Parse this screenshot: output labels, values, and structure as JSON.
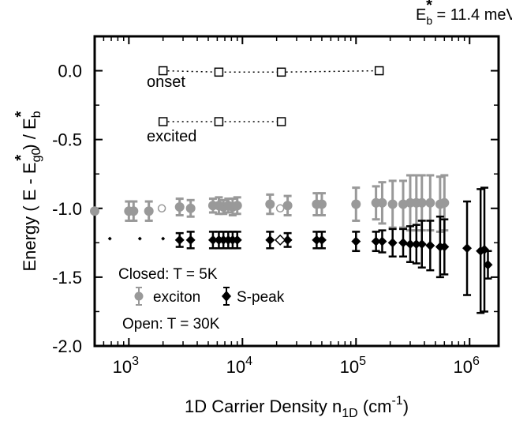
{
  "chart_data": {
    "type": "scatter",
    "header_note": {
      "main": "E",
      "sub": "b",
      "sup": "*",
      "rest": " = 11.4 meV"
    },
    "xlabel": {
      "pre": "1D Carrier Density n",
      "sub": "1D",
      "mid": " (cm",
      "sup": "-1",
      "post": ")"
    },
    "ylabel": "Energy  ( E - E*g0 ) / E*b",
    "x_scale": "log",
    "xlim": [
      500,
      1800000
    ],
    "ylim": [
      -2.0,
      0.25
    ],
    "y_ticks": [
      "0.0",
      "-0.5",
      "-1.0",
      "-1.5",
      "-2.0"
    ],
    "y_tick_values": [
      0.0,
      -0.5,
      -1.0,
      -1.5,
      -2.0
    ],
    "x_ticks": [
      {
        "value": 1000,
        "base": "10",
        "exp": "3"
      },
      {
        "value": 10000,
        "base": "10",
        "exp": "4"
      },
      {
        "value": 100000,
        "base": "10",
        "exp": "5"
      },
      {
        "value": 1000000,
        "base": "10",
        "exp": "6"
      }
    ],
    "grid": false,
    "series": [
      {
        "name": "onset",
        "style": "open-square-dotted",
        "color": "#000000",
        "points": [
          {
            "x": 2000,
            "y": 0.0
          },
          {
            "x": 6200,
            "y": -0.01
          },
          {
            "x": 22000,
            "y": -0.01
          },
          {
            "x": 160000,
            "y": 0.0
          }
        ]
      },
      {
        "name": "excited",
        "style": "open-square-dotted",
        "color": "#000000",
        "points": [
          {
            "x": 2000,
            "y": -0.37
          },
          {
            "x": 6200,
            "y": -0.37
          },
          {
            "x": 22000,
            "y": -0.37
          }
        ]
      },
      {
        "name": "exciton",
        "style": "filled-circle",
        "color": "#999999",
        "points": [
          {
            "x": 500,
            "y": -1.02,
            "err": 0.0
          },
          {
            "x": 1000,
            "y": -1.02,
            "err": 0.07
          },
          {
            "x": 1100,
            "y": -1.02,
            "err": 0.07
          },
          {
            "x": 1500,
            "y": -1.02,
            "err": 0.07
          },
          {
            "x": 2800,
            "y": -0.99,
            "err": 0.06
          },
          {
            "x": 3500,
            "y": -1.0,
            "err": 0.06
          },
          {
            "x": 5500,
            "y": -0.98,
            "err": 0.05
          },
          {
            "x": 6200,
            "y": -0.98,
            "err": 0.06
          },
          {
            "x": 6800,
            "y": -0.99,
            "err": 0.05
          },
          {
            "x": 7500,
            "y": -0.98,
            "err": 0.05
          },
          {
            "x": 8200,
            "y": -0.99,
            "err": 0.06
          },
          {
            "x": 9000,
            "y": -0.98,
            "err": 0.06
          },
          {
            "x": 17500,
            "y": -0.97,
            "err": 0.07
          },
          {
            "x": 25000,
            "y": -0.98,
            "err": 0.07
          },
          {
            "x": 45000,
            "y": -0.97,
            "err": 0.08
          },
          {
            "x": 50000,
            "y": -0.97,
            "err": 0.08
          },
          {
            "x": 100000,
            "y": -0.97,
            "err": 0.12
          },
          {
            "x": 150000,
            "y": -0.96,
            "err": 0.12
          },
          {
            "x": 170000,
            "y": -0.96,
            "err": 0.15
          },
          {
            "x": 210000,
            "y": -0.97,
            "err": 0.17
          },
          {
            "x": 260000,
            "y": -0.97,
            "err": 0.17
          },
          {
            "x": 300000,
            "y": -0.96,
            "err": 0.2
          },
          {
            "x": 340000,
            "y": -0.96,
            "err": 0.2
          },
          {
            "x": 380000,
            "y": -0.96,
            "err": 0.2
          },
          {
            "x": 450000,
            "y": -0.96,
            "err": 0.2
          },
          {
            "x": 550000,
            "y": -0.97,
            "err": 0.2
          },
          {
            "x": 600000,
            "y": -0.96,
            "err": 0.2
          }
        ]
      },
      {
        "name": "exciton (open)",
        "style": "open-circle",
        "color": "#999999",
        "points": [
          {
            "x": 1950,
            "y": -1.0
          },
          {
            "x": 21500,
            "y": -1.0
          }
        ]
      },
      {
        "name": "S-peak",
        "style": "filled-diamond",
        "color": "#000000",
        "points": [
          {
            "x": 680,
            "y": -1.22,
            "err": 0.0
          },
          {
            "x": 1250,
            "y": -1.22,
            "err": 0.0
          },
          {
            "x": 2000,
            "y": -1.22,
            "err": 0.0
          },
          {
            "x": 2800,
            "y": -1.23,
            "err": 0.05
          },
          {
            "x": 3500,
            "y": -1.23,
            "err": 0.06
          },
          {
            "x": 5500,
            "y": -1.23,
            "err": 0.06
          },
          {
            "x": 6200,
            "y": -1.23,
            "err": 0.06
          },
          {
            "x": 6800,
            "y": -1.23,
            "err": 0.06
          },
          {
            "x": 7500,
            "y": -1.23,
            "err": 0.06
          },
          {
            "x": 8200,
            "y": -1.23,
            "err": 0.06
          },
          {
            "x": 9000,
            "y": -1.23,
            "err": 0.06
          },
          {
            "x": 17500,
            "y": -1.23,
            "err": 0.06
          },
          {
            "x": 25000,
            "y": -1.23,
            "err": 0.05
          },
          {
            "x": 45000,
            "y": -1.23,
            "err": 0.06
          },
          {
            "x": 50000,
            "y": -1.23,
            "err": 0.06
          },
          {
            "x": 100000,
            "y": -1.24,
            "err": 0.07
          },
          {
            "x": 150000,
            "y": -1.24,
            "err": 0.07
          },
          {
            "x": 170000,
            "y": -1.24,
            "err": 0.08
          },
          {
            "x": 210000,
            "y": -1.25,
            "err": 0.1
          },
          {
            "x": 260000,
            "y": -1.25,
            "err": 0.1
          },
          {
            "x": 300000,
            "y": -1.26,
            "err": 0.13
          },
          {
            "x": 340000,
            "y": -1.26,
            "err": 0.14
          },
          {
            "x": 380000,
            "y": -1.26,
            "err": 0.17
          },
          {
            "x": 450000,
            "y": -1.27,
            "err": 0.18
          },
          {
            "x": 550000,
            "y": -1.28,
            "err": 0.22
          },
          {
            "x": 600000,
            "y": -1.28,
            "err": 0.2
          },
          {
            "x": 950000,
            "y": -1.29,
            "err": 0.34
          },
          {
            "x": 1250000,
            "y": -1.31,
            "err": 0.45
          },
          {
            "x": 1350000,
            "y": -1.3,
            "err": 0.45
          },
          {
            "x": 1450000,
            "y": -1.41,
            "err": 0.1
          }
        ]
      },
      {
        "name": "S-peak (open)",
        "style": "open-diamond",
        "color": "#000000",
        "points": [
          {
            "x": 21500,
            "y": -1.23
          }
        ]
      }
    ],
    "annotations": [
      {
        "text": "onset",
        "anchor": "below onset series, left"
      },
      {
        "text": "excited",
        "anchor": "below excited series, left"
      },
      {
        "text": "Closed:  T = 5K"
      },
      {
        "text": "exciton"
      },
      {
        "text": "S-peak"
      },
      {
        "text": "Open:  T = 30K"
      }
    ]
  }
}
